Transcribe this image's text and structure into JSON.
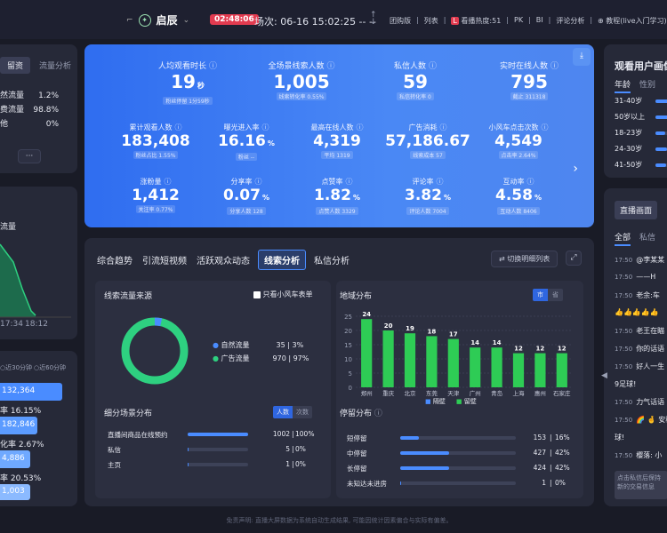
{
  "header": {
    "title": "启辰",
    "timer": "02:48:06",
    "session": "场次: 06-16 15:02:25 -- --",
    "nav": [
      "团购版",
      "列表",
      "看播热度:51",
      "PK",
      "BI",
      "评论分析",
      "教程(live入门学习)"
    ]
  },
  "left": {
    "tabs": [
      "留资",
      "流量分析"
    ],
    "sources": [
      {
        "label": "然流量",
        "pct": "1.2%"
      },
      {
        "label": "费流量",
        "pct": "98.8%"
      },
      {
        "label": "他",
        "pct": "0%"
      }
    ],
    "more": "···",
    "chart_title": "流量",
    "chart_times": [
      "17:34",
      "18:12"
    ],
    "funnel_tabs": [
      "近30分钟",
      "近60分钟"
    ],
    "funnel": [
      {
        "value": "132,364"
      },
      {
        "label": "率",
        "value": "16.15%"
      },
      {
        "value": "182,846"
      },
      {
        "label": "化率",
        "value": "2.67%"
      },
      {
        "value": "4,886"
      },
      {
        "label": "率",
        "value": "20.53%"
      },
      {
        "value": "1,003"
      }
    ]
  },
  "kpi": {
    "top": [
      {
        "label": "人均观看时长",
        "value": "19",
        "unit": "秒",
        "sub": "粉丝停留 1分59秒"
      },
      {
        "label": "全场景线索人数",
        "value": "1,005",
        "sub": "线索转化率 0.55%"
      },
      {
        "label": "私信人数",
        "value": "59",
        "sub": "私信转化率 0"
      },
      {
        "label": "实时在线人数",
        "value": "795",
        "sub": "截止 311318"
      }
    ],
    "mid": [
      {
        "label": "累计观看人数",
        "value": "183,408",
        "sub": "粉丝占比 1.55%"
      },
      {
        "label": "曝光进入率",
        "value": "16.16",
        "unit": "%",
        "sub": "粉丝 --"
      },
      {
        "label": "最高在线人数",
        "value": "4,319",
        "sub": "平均 1319"
      },
      {
        "label": "广告消耗",
        "value": "57,186.67",
        "sub": "线索成本 57"
      },
      {
        "label": "小风车点击次数",
        "value": "4,549",
        "sub": "点击率 2.64%"
      }
    ],
    "bot": [
      {
        "label": "涨粉量",
        "value": "1,412",
        "sub": "关注率 0.77%"
      },
      {
        "label": "分享率",
        "value": "0.07",
        "unit": "%",
        "sub": "分享人数 128"
      },
      {
        "label": "点赞率",
        "value": "1.82",
        "unit": "%",
        "sub": "点赞人数 3329"
      },
      {
        "label": "评论率",
        "value": "3.82",
        "unit": "%",
        "sub": "评论人数 7004"
      },
      {
        "label": "互动率",
        "value": "4.58",
        "unit": "%",
        "sub": "互动人数 8406"
      }
    ]
  },
  "tabs": {
    "items": [
      "综合趋势",
      "引流短视频",
      "活跃观众动态",
      "线索分析",
      "私信分析"
    ],
    "switch": "切换明细列表"
  },
  "source": {
    "title": "线索流量来源",
    "toggle": "只看小风车表单",
    "legend": [
      {
        "label": "自然流量",
        "count": "35",
        "pct": "3%",
        "color": "#4a8cff"
      },
      {
        "label": "广告流量",
        "count": "970",
        "pct": "97%",
        "color": "#2ed080"
      }
    ],
    "natural_fraction": 0.035
  },
  "region": {
    "title": "地域分布",
    "toggle": [
      "市",
      "省"
    ],
    "legend": [
      "隔壁",
      "留壁"
    ],
    "chart_data": {
      "type": "bar",
      "categories": [
        "郑州",
        "重庆",
        "北京",
        "东莞",
        "天津",
        "广州",
        "青岛",
        "上海",
        "惠州",
        "石家庄"
      ],
      "values": [
        24,
        20,
        19,
        18,
        17,
        14,
        14,
        12,
        12,
        12
      ],
      "ylim": [
        0,
        25
      ],
      "yticks": [
        0,
        5,
        10,
        15,
        20,
        25
      ],
      "color": "#2ecc55"
    }
  },
  "scene": {
    "title": "细分场景分布",
    "toggle": [
      "人数",
      "次数"
    ],
    "rows": [
      {
        "label": "直播间商品在线预约",
        "count": "1002",
        "pct": "100%",
        "frac": 0.997
      },
      {
        "label": "私信",
        "count": "5",
        "pct": "0%",
        "frac": 0.01
      },
      {
        "label": "主页",
        "count": "1",
        "pct": "0%",
        "frac": 0.003
      }
    ]
  },
  "stay": {
    "title": "停留分布",
    "rows": [
      {
        "label": "短停留",
        "count": "153",
        "pct": "16%",
        "frac": 0.16
      },
      {
        "label": "中停留",
        "count": "427",
        "pct": "42%",
        "frac": 0.42
      },
      {
        "label": "长停留",
        "count": "424",
        "pct": "42%",
        "frac": 0.42
      },
      {
        "label": "未知达未进房",
        "count": "1",
        "pct": "0%",
        "frac": 0.002
      }
    ]
  },
  "right": {
    "title": "观看用户画像",
    "tabs": [
      "年龄",
      "性别"
    ],
    "ages": [
      {
        "label": "31-40岁",
        "frac": 0.9
      },
      {
        "label": "50岁以上",
        "frac": 0.7
      },
      {
        "label": "18-23岁",
        "frac": 0.5
      },
      {
        "label": "24-30岁",
        "frac": 0.6
      },
      {
        "label": "41-50岁",
        "frac": 0.55
      }
    ],
    "live_tab": "直播画面",
    "chat_tabs": [
      "全部",
      "私信"
    ],
    "chat": [
      {
        "time": "17:50",
        "text": "@李某某"
      },
      {
        "time": "17:50",
        "text": "——H"
      },
      {
        "time": "17:50",
        "text": "老余:车"
      },
      {
        "time": "",
        "text": "👍👍👍👍👍"
      },
      {
        "time": "17:50",
        "text": "老王在瞄"
      },
      {
        "time": "17:50",
        "text": "你的话语"
      },
      {
        "time": "17:50",
        "text": "好人一生"
      },
      {
        "time": "",
        "text": "9足球!"
      },
      {
        "time": "17:50",
        "text": "力气话语"
      },
      {
        "time": "17:50",
        "text": "🌈 🤞 安稳"
      },
      {
        "time": "",
        "text": "球!"
      },
      {
        "time": "17:50",
        "text": "樱落: 小"
      }
    ],
    "chat_note": "点击私信后保持新的交易信息"
  },
  "footer": "免责声明: 直播大屏数据为系统自动生成结果, 可能因统计因素偏合与实际有偏差。"
}
